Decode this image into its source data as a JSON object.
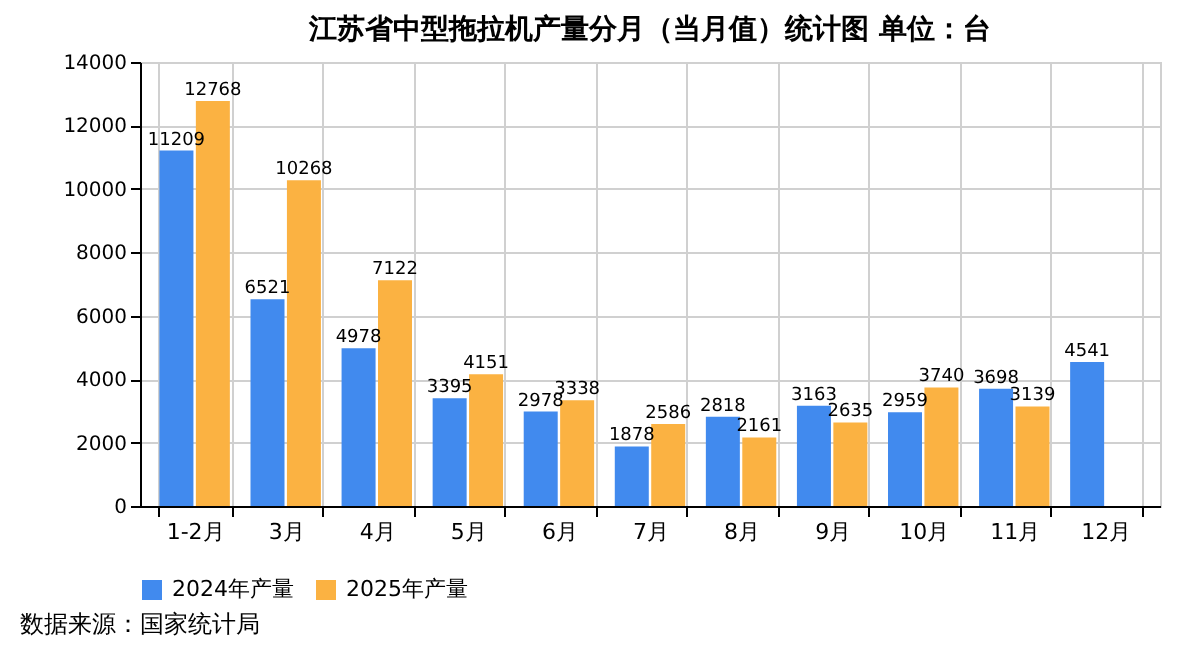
{
  "chart_data": {
    "type": "bar",
    "title": "江苏省中型拖拉机产量分月（当月值）统计图 单位：台",
    "categories": [
      "1-2月",
      "3月",
      "4月",
      "5月",
      "6月",
      "7月",
      "8月",
      "9月",
      "10月",
      "11月",
      "12月"
    ],
    "series": [
      {
        "name": "2024年产量",
        "color": "#418aee",
        "values": [
          11209,
          6521,
          4978,
          3395,
          2978,
          1878,
          2818,
          3163,
          2959,
          3698,
          4541
        ]
      },
      {
        "name": "2025年产量",
        "color": "#fbb242",
        "values": [
          12768,
          10268,
          7122,
          4151,
          3338,
          2586,
          2161,
          2635,
          3740,
          3139,
          null
        ]
      }
    ],
    "ylim": [
      0,
      14000
    ],
    "yticks": [
      0,
      2000,
      4000,
      6000,
      8000,
      10000,
      12000,
      14000
    ],
    "grid": true,
    "legend": "bottom",
    "data_labels": true,
    "annotations": [
      "数据来源：国家统计局"
    ]
  }
}
